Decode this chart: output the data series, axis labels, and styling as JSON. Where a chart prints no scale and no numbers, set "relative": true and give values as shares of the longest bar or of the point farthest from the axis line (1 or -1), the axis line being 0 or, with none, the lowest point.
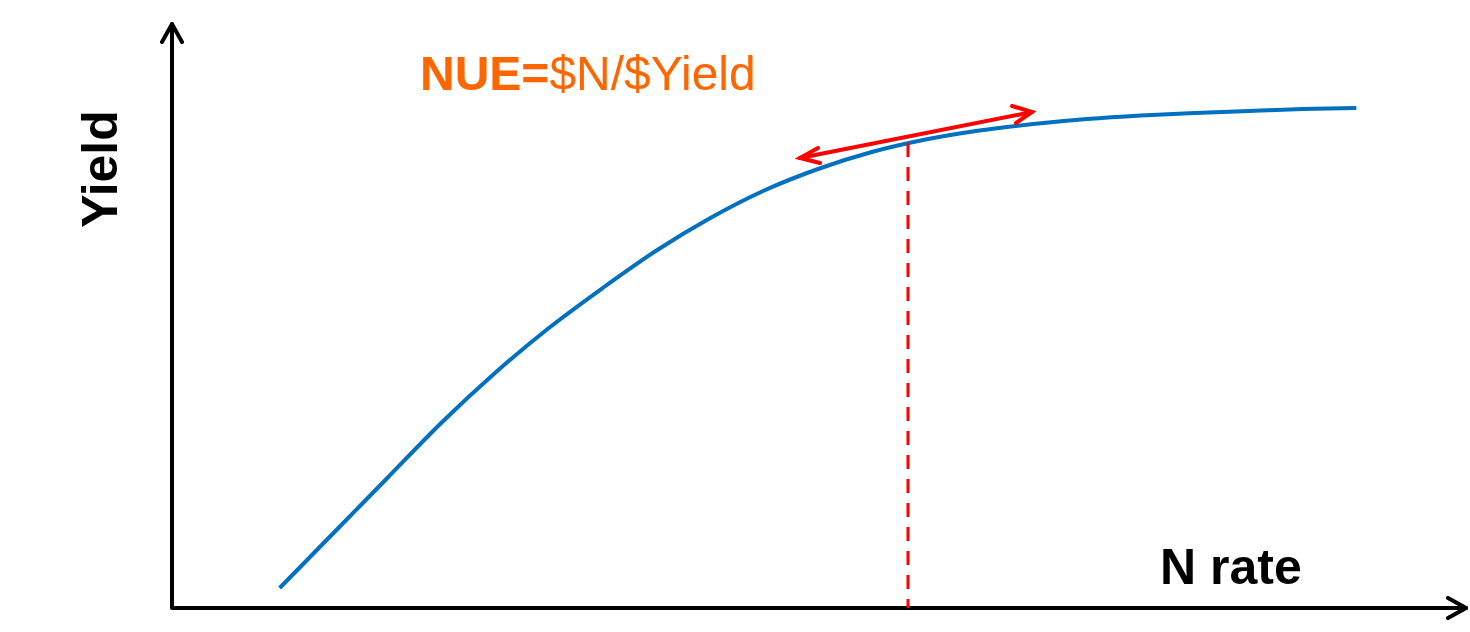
{
  "chart_data": {
    "type": "line",
    "relative": true,
    "xlabel": "N rate",
    "ylabel": "Yield",
    "annotations": [
      "NUE=$N/$Yield"
    ],
    "categories": [
      null,
      null,
      null,
      null,
      null,
      null,
      null,
      null,
      null,
      null,
      null,
      null,
      null,
      null,
      null,
      null,
      null,
      null,
      null,
      null,
      null,
      null,
      null,
      null,
      null
    ],
    "series": [
      {
        "color": "#0070c0",
        "values": [
          null,
          null,
          0.04,
          0.15,
          0.26,
          0.37,
          0.47,
          0.56,
          0.64,
          0.715,
          0.78,
          0.835,
          0.878,
          0.912,
          0.937,
          0.955,
          0.968,
          0.978,
          0.985,
          0.99,
          0.994,
          0.998,
          1,
          null,
          null
        ]
      }
    ],
    "marker": "none",
    "line_style": "solid",
    "legend": false
  }
}
